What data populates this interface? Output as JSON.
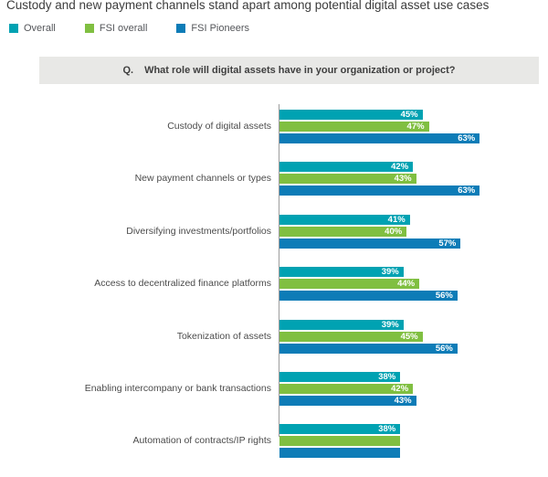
{
  "page": {
    "title": "Custody and new payment channels stand apart among potential digital asset use cases",
    "question_prefix": "Q.",
    "question": "What role will digital assets have in your organization or project?"
  },
  "chart_data": {
    "type": "bar",
    "orientation": "horizontal",
    "unit": "%",
    "legend_position": "top-left",
    "value_axis": {
      "visible": false,
      "implied_range": [
        0,
        100
      ]
    },
    "categories": [
      "Custody of digital assets",
      "New payment channels or types",
      "Diversifying investments/portfolios",
      "Access to decentralized finance platforms",
      "Tokenization of assets",
      "Enabling intercompany or bank transactions",
      "Automation of contracts/IP rights"
    ],
    "series": [
      {
        "name": "Overall",
        "color": "#00a2b2",
        "values": [
          45,
          42,
          41,
          39,
          39,
          38,
          38
        ]
      },
      {
        "name": "FSI overall",
        "color": "#80bf41",
        "values": [
          47,
          43,
          40,
          44,
          45,
          42,
          null
        ]
      },
      {
        "name": "FSI Pioneers",
        "color": "#0d7cb7",
        "values": [
          63,
          63,
          57,
          56,
          56,
          43,
          null
        ]
      }
    ],
    "notes": "Last category row is clipped by the bottom edge of the screenshot; only its Overall bar (38%) and a sliver of the FSI overall bar are visible."
  }
}
